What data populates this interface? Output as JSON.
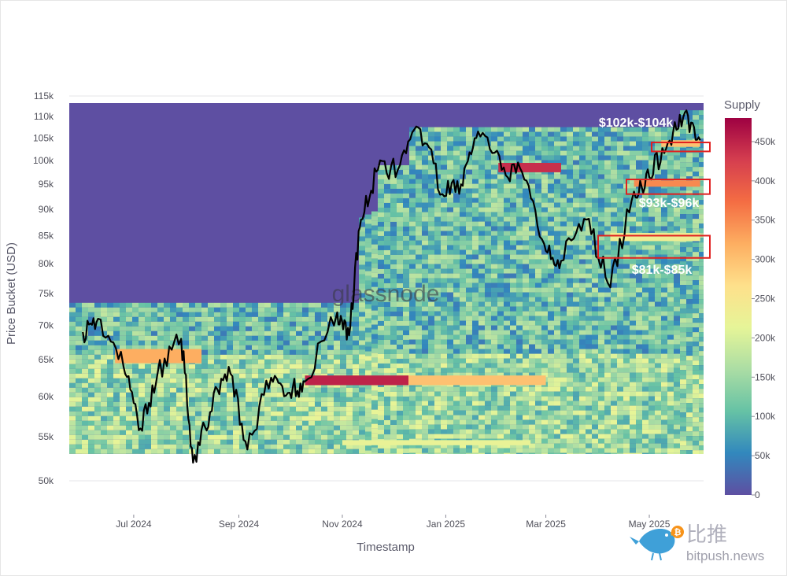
{
  "chart_data": {
    "type": "heatmap",
    "xlabel": "Timestamp",
    "ylabel": "Price Bucket (USD)",
    "y_scale": "log",
    "ylim": [
      48000,
      117000
    ],
    "x_ticks": [
      "Jul 2024",
      "Sep 2024",
      "Nov 2024",
      "Jan 2025",
      "Mar 2025",
      "May 2025"
    ],
    "y_ticks": [
      {
        "value": 50000,
        "label": "50k"
      },
      {
        "value": 55000,
        "label": "55k"
      },
      {
        "value": 60000,
        "label": "60k"
      },
      {
        "value": 65000,
        "label": "65k"
      },
      {
        "value": 70000,
        "label": "70k"
      },
      {
        "value": 75000,
        "label": "75k"
      },
      {
        "value": 80000,
        "label": "80k"
      },
      {
        "value": 85000,
        "label": "85k"
      },
      {
        "value": 90000,
        "label": "90k"
      },
      {
        "value": 95000,
        "label": "95k"
      },
      {
        "value": 100000,
        "label": "100k"
      },
      {
        "value": 105000,
        "label": "105k"
      },
      {
        "value": 110000,
        "label": "110k"
      },
      {
        "value": 115000,
        "label": "115k"
      }
    ],
    "colorbar": {
      "title": "Supply",
      "range": [
        0,
        480000
      ],
      "ticks": [
        {
          "value": 0,
          "label": "0"
        },
        {
          "value": 50000,
          "label": "50k"
        },
        {
          "value": 100000,
          "label": "100k"
        },
        {
          "value": 150000,
          "label": "150k"
        },
        {
          "value": 200000,
          "label": "200k"
        },
        {
          "value": 250000,
          "label": "250k"
        },
        {
          "value": 300000,
          "label": "300k"
        },
        {
          "value": 350000,
          "label": "350k"
        },
        {
          "value": 400000,
          "label": "400k"
        },
        {
          "value": 450000,
          "label": "450k"
        }
      ]
    },
    "price_series": {
      "dates": [
        "2024-06-01",
        "2024-06-10",
        "2024-06-25",
        "2024-07-05",
        "2024-07-15",
        "2024-07-29",
        "2024-08-05",
        "2024-08-15",
        "2024-08-26",
        "2024-09-06",
        "2024-09-20",
        "2024-10-01",
        "2024-10-10",
        "2024-10-29",
        "2024-11-05",
        "2024-11-12",
        "2024-11-22",
        "2024-12-05",
        "2024-12-17",
        "2024-12-30",
        "2025-01-10",
        "2025-01-20",
        "2025-02-03",
        "2025-02-15",
        "2025-02-28",
        "2025-03-10",
        "2025-03-25",
        "2025-04-08",
        "2025-04-22",
        "2025-05-01",
        "2025-05-12",
        "2025-05-22",
        "2025-05-31"
      ],
      "values": [
        69000,
        71000,
        64000,
        56000,
        63000,
        68000,
        52000,
        58000,
        64000,
        53500,
        62500,
        60500,
        62000,
        72000,
        68500,
        88000,
        98000,
        99000,
        107000,
        93000,
        95000,
        106500,
        98000,
        97500,
        83500,
        80500,
        88000,
        76000,
        93500,
        96500,
        104000,
        111000,
        104500
      ]
    },
    "supply_bands": [
      {
        "low": 97500,
        "high": 99500,
        "start": "2025-02-01",
        "end": "2025-03-10",
        "supply": 440000
      },
      {
        "low": 64500,
        "high": 66500,
        "start": "2024-06-20",
        "end": "2024-08-10",
        "supply": 320000
      },
      {
        "low": 61500,
        "high": 62800,
        "start": "2024-10-10",
        "end": "2024-12-10",
        "supply": 450000
      },
      {
        "low": 61500,
        "high": 62800,
        "start": "2024-12-10",
        "end": "2025-03-01",
        "supply": 300000
      },
      {
        "low": 54000,
        "high": 54600,
        "start": "2024-11-01",
        "end": "2025-02-20",
        "supply": 220000
      },
      {
        "low": 94500,
        "high": 95800,
        "start": "2025-04-22",
        "end": "2025-05-31",
        "supply": 350000
      },
      {
        "low": 103000,
        "high": 104500,
        "start": "2025-05-08",
        "end": "2025-05-31",
        "supply": 300000
      },
      {
        "low": 84000,
        "high": 85500,
        "start": "2025-04-08",
        "end": "2025-05-31",
        "supply": 230000
      }
    ],
    "annotations": [
      {
        "text": "$102k-$104k",
        "low": 102000,
        "high": 104000
      },
      {
        "text": "$93k-$96k",
        "low": 93000,
        "high": 96000
      },
      {
        "text": "$81k-$85k",
        "low": 81000,
        "high": 85000
      }
    ]
  },
  "watermark": "glassnode",
  "brand": {
    "cn": "比推",
    "en": "bitpush.news"
  },
  "colors": {
    "background_band": "#5e4fa2",
    "price_line": "#000000",
    "annotation_box": "#e02020",
    "scale": [
      "#5e4fa2",
      "#3288bd",
      "#66c2a5",
      "#abdda4",
      "#e6f598",
      "#fee08b",
      "#fdae61",
      "#f46d43",
      "#d53e4f",
      "#9e0142"
    ]
  }
}
